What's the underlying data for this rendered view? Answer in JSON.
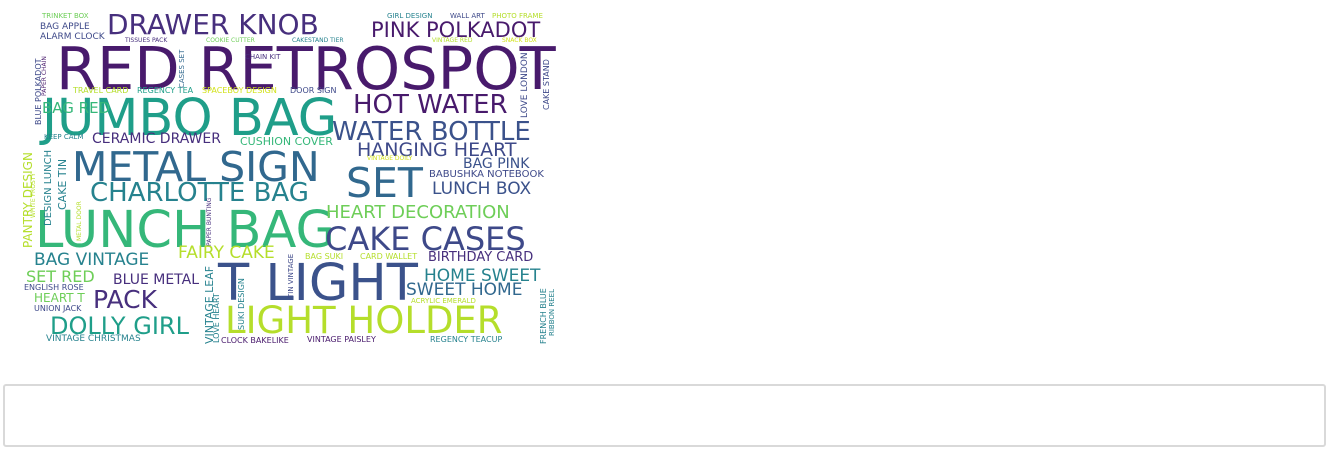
{
  "palette": {
    "dark_purple": "#481a6c",
    "purple": "#472f7d",
    "indigo": "#3e4989",
    "slate_blue": "#3b528b",
    "blue": "#31688e",
    "teal": "#26828e",
    "teal_green": "#1f9e89",
    "green": "#35b779",
    "light_green": "#6ece58",
    "lime": "#b5de2b",
    "yellow_green": "#d2e21b"
  },
  "wordcloud": {
    "words": [
      {
        "text": "RED RETROSPOT",
        "color": "#481a6c"
      },
      {
        "text": "JUMBO BAG",
        "color": "#1f9e89"
      },
      {
        "text": "LUNCH BAG",
        "color": "#35b779"
      },
      {
        "text": "METAL SIGN",
        "color": "#31688e"
      },
      {
        "text": "T LIGHT",
        "color": "#3b528b"
      },
      {
        "text": "LIGHT HOLDER",
        "color": "#b5de2b"
      },
      {
        "text": "SET",
        "color": "#31688e"
      },
      {
        "text": "CAKE CASES",
        "color": "#3e4989"
      },
      {
        "text": "DRAWER KNOB",
        "color": "#472f7d"
      },
      {
        "text": "HOT WATER",
        "color": "#481a6c"
      },
      {
        "text": "WATER BOTTLE",
        "color": "#3b528b"
      },
      {
        "text": "CHARLOTTE BAG",
        "color": "#26828e"
      },
      {
        "text": "PINK POLKADOT",
        "color": "#481a6c"
      },
      {
        "text": "HANGING HEART",
        "color": "#3e4989"
      },
      {
        "text": "DOLLY GIRL",
        "color": "#1f9e89"
      },
      {
        "text": "PACK",
        "color": "#472f7d"
      },
      {
        "text": "HEART DECORATION",
        "color": "#6ece58"
      },
      {
        "text": "LUNCH BOX",
        "color": "#3b528b"
      },
      {
        "text": "BAG VINTAGE",
        "color": "#26828e"
      },
      {
        "text": "HOME SWEET",
        "color": "#26828e"
      },
      {
        "text": "FAIRY CAKE",
        "color": "#b5de2b"
      },
      {
        "text": "SWEET HOME",
        "color": "#31688e"
      },
      {
        "text": "SET RED",
        "color": "#6ece58"
      },
      {
        "text": "CERAMIC DRAWER",
        "color": "#472f7d"
      },
      {
        "text": "BLUE METAL",
        "color": "#472f7d"
      },
      {
        "text": "BIRTHDAY CARD",
        "color": "#472f7d"
      },
      {
        "text": "BAG PINK",
        "color": "#3b528b"
      },
      {
        "text": "HEART T",
        "color": "#6ece58"
      },
      {
        "text": "CUSHION COVER",
        "color": "#35b779"
      },
      {
        "text": "BABUSHKA NOTEBOOK",
        "color": "#3e4989"
      },
      {
        "text": "BAG RED",
        "color": "#35b779"
      },
      {
        "text": "PANTRY DESIGN",
        "color": "#b5de2b"
      },
      {
        "text": "VINTAGE CHRISTMAS",
        "color": "#26828e"
      },
      {
        "text": "DESIGN LUNCH",
        "color": "#26828e"
      },
      {
        "text": "CAKE TIN",
        "color": "#26828e"
      },
      {
        "text": "LOVE LONDON",
        "color": "#3e4989"
      },
      {
        "text": "CAKE STAND",
        "color": "#3e4989"
      },
      {
        "text": "VINTAGE LEAF",
        "color": "#26828e"
      },
      {
        "text": "TRAVEL CARD",
        "color": "#b5de2b"
      },
      {
        "text": "REGENCY TEA",
        "color": "#1f9e89"
      },
      {
        "text": "SPACEBOY DESIGN",
        "color": "#d2e21b"
      },
      {
        "text": "DOOR SIGN",
        "color": "#3e4989"
      },
      {
        "text": "REGENCY TEACUP",
        "color": "#26828e"
      },
      {
        "text": "VINTAGE PAISLEY",
        "color": "#481a6c"
      },
      {
        "text": "CLOCK BAKELIKE",
        "color": "#481a6c"
      },
      {
        "text": "UNION JACK",
        "color": "#3e4989"
      },
      {
        "text": "ENGLISH ROSE",
        "color": "#3e4989"
      },
      {
        "text": "BAG SUKI",
        "color": "#b5de2b"
      },
      {
        "text": "CARD WALLET",
        "color": "#b5de2b"
      },
      {
        "text": "BAG APPLE",
        "color": "#3e4989"
      },
      {
        "text": "ALARM CLOCK",
        "color": "#3e4989"
      },
      {
        "text": "TRINKET BOX",
        "color": "#6ece58"
      },
      {
        "text": "GIRL DESIGN",
        "color": "#26828e"
      },
      {
        "text": "WALL ART",
        "color": "#3e4989"
      },
      {
        "text": "PHOTO FRAME",
        "color": "#b5de2b"
      },
      {
        "text": "TISSUES PACK",
        "color": "#472f7d"
      },
      {
        "text": "COOKIE CUTTER",
        "color": "#6ece58"
      },
      {
        "text": "CAKESTAND TIER",
        "color": "#26828e"
      },
      {
        "text": "VINTAGE RED",
        "color": "#b5de2b"
      },
      {
        "text": "SNACK BOX",
        "color": "#d2e21b"
      },
      {
        "text": "CHAIN KIT",
        "color": "#472f7d"
      },
      {
        "text": "CASES SET",
        "color": "#31688e"
      },
      {
        "text": "KEEP CALM",
        "color": "#26828e"
      },
      {
        "text": "SUKI DESIGN",
        "color": "#26828e"
      },
      {
        "text": "LOVE HEART",
        "color": "#26828e"
      },
      {
        "text": "TIN VINTAGE",
        "color": "#3e4989"
      },
      {
        "text": "FRENCH BLUE",
        "color": "#26828e"
      },
      {
        "text": "RIBBON REEL",
        "color": "#26828e"
      },
      {
        "text": "ACRYLIC EMERALD",
        "color": "#b5de2b"
      },
      {
        "text": "VINTAGE DOILY",
        "color": "#d2e21b"
      },
      {
        "text": "PAPER BUNTING",
        "color": "#472f7d"
      },
      {
        "text": "METAL DOOR",
        "color": "#b5de2b"
      },
      {
        "text": "WHITE FROSTY",
        "color": "#b5de2b"
      },
      {
        "text": "BLUE POLKADOT",
        "color": "#3e4989"
      },
      {
        "text": "PAPER CHAIN",
        "color": "#481a6c"
      }
    ]
  },
  "input_box": {
    "value": ""
  }
}
